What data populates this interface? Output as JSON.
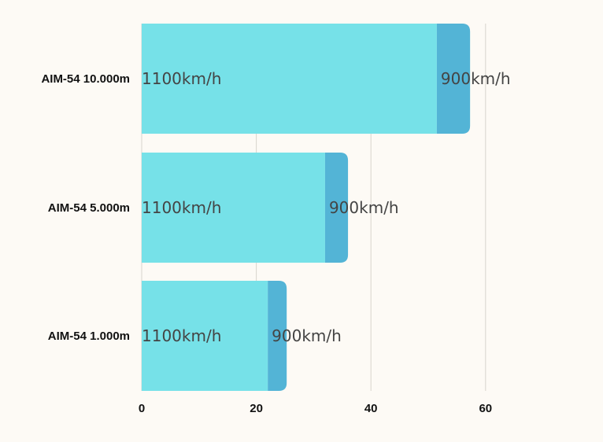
{
  "chart_data": {
    "type": "bar",
    "orientation": "horizontal",
    "stacked": true,
    "categories": [
      "AIM-54 10.000m",
      "AIM-54 5.000m",
      "AIM-54 1.000m"
    ],
    "series": [
      {
        "values": [
          51.5,
          32,
          22
        ],
        "color": "#76e1e8"
      },
      {
        "values": [
          5.8,
          4,
          3.3
        ],
        "color": "#53b4d6"
      }
    ],
    "data_labels": [
      [
        "1100km/h",
        "1100km/h",
        "1100km/h"
      ],
      [
        "900km/h",
        "900km/h",
        "900km/h"
      ]
    ],
    "x_ticks": [
      "0",
      "20",
      "40",
      "60"
    ],
    "x_tick_values": [
      0,
      20,
      40,
      60
    ],
    "xlim": [
      0,
      75
    ],
    "title": "",
    "xlabel": "",
    "ylabel": "",
    "grid": "vertical",
    "legend": "none"
  }
}
